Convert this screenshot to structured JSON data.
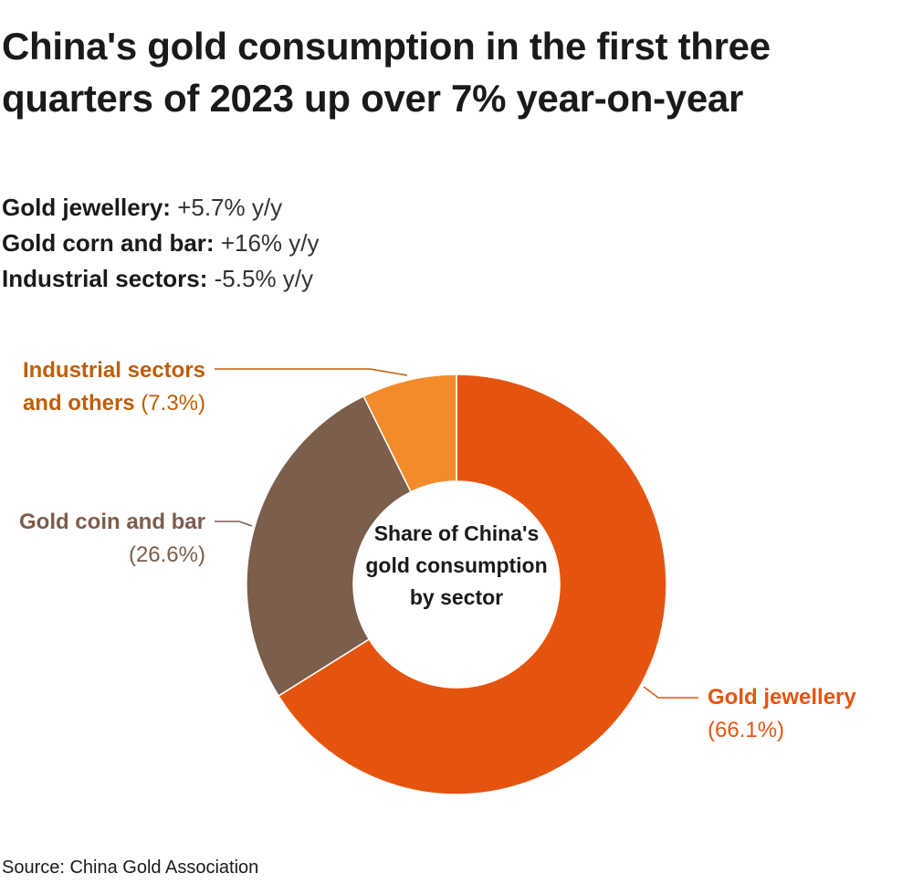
{
  "title": "China's gold consumption in the first three quarters of 2023 up over 7% year-on-year",
  "stats": [
    {
      "label": "Gold jewellery:",
      "value": "+5.7% y/y"
    },
    {
      "label": "Gold corn and bar:",
      "value": "+16% y/y"
    },
    {
      "label": "Industrial sectors:",
      "value": "-5.5% y/y"
    }
  ],
  "center_label": "Share of China's gold consumption by sector",
  "source": "Source: China Gold Association",
  "chart_data": {
    "type": "pie",
    "variant": "donut",
    "title": "Share of China's gold consumption by sector",
    "unit": "%",
    "slices": [
      {
        "name": "Gold jewellery",
        "value": 66.1,
        "label_name": "Gold jewellery",
        "label_pct": "(66.1%)",
        "color": "#e5540f",
        "label_color": "#e5540f"
      },
      {
        "name": "Gold coin and bar",
        "value": 26.6,
        "label_name": "Gold coin and bar",
        "label_pct": "(26.6%)",
        "color": "#7b5e4b",
        "label_color": "#7b5e4b"
      },
      {
        "name": "Industrial sectors and others",
        "value": 7.3,
        "label_name_lines": [
          "Industrial sectors",
          "and others"
        ],
        "label_pct": "(7.3%)",
        "color": "#f28c2a",
        "label_color": "#bf5e05"
      }
    ]
  }
}
